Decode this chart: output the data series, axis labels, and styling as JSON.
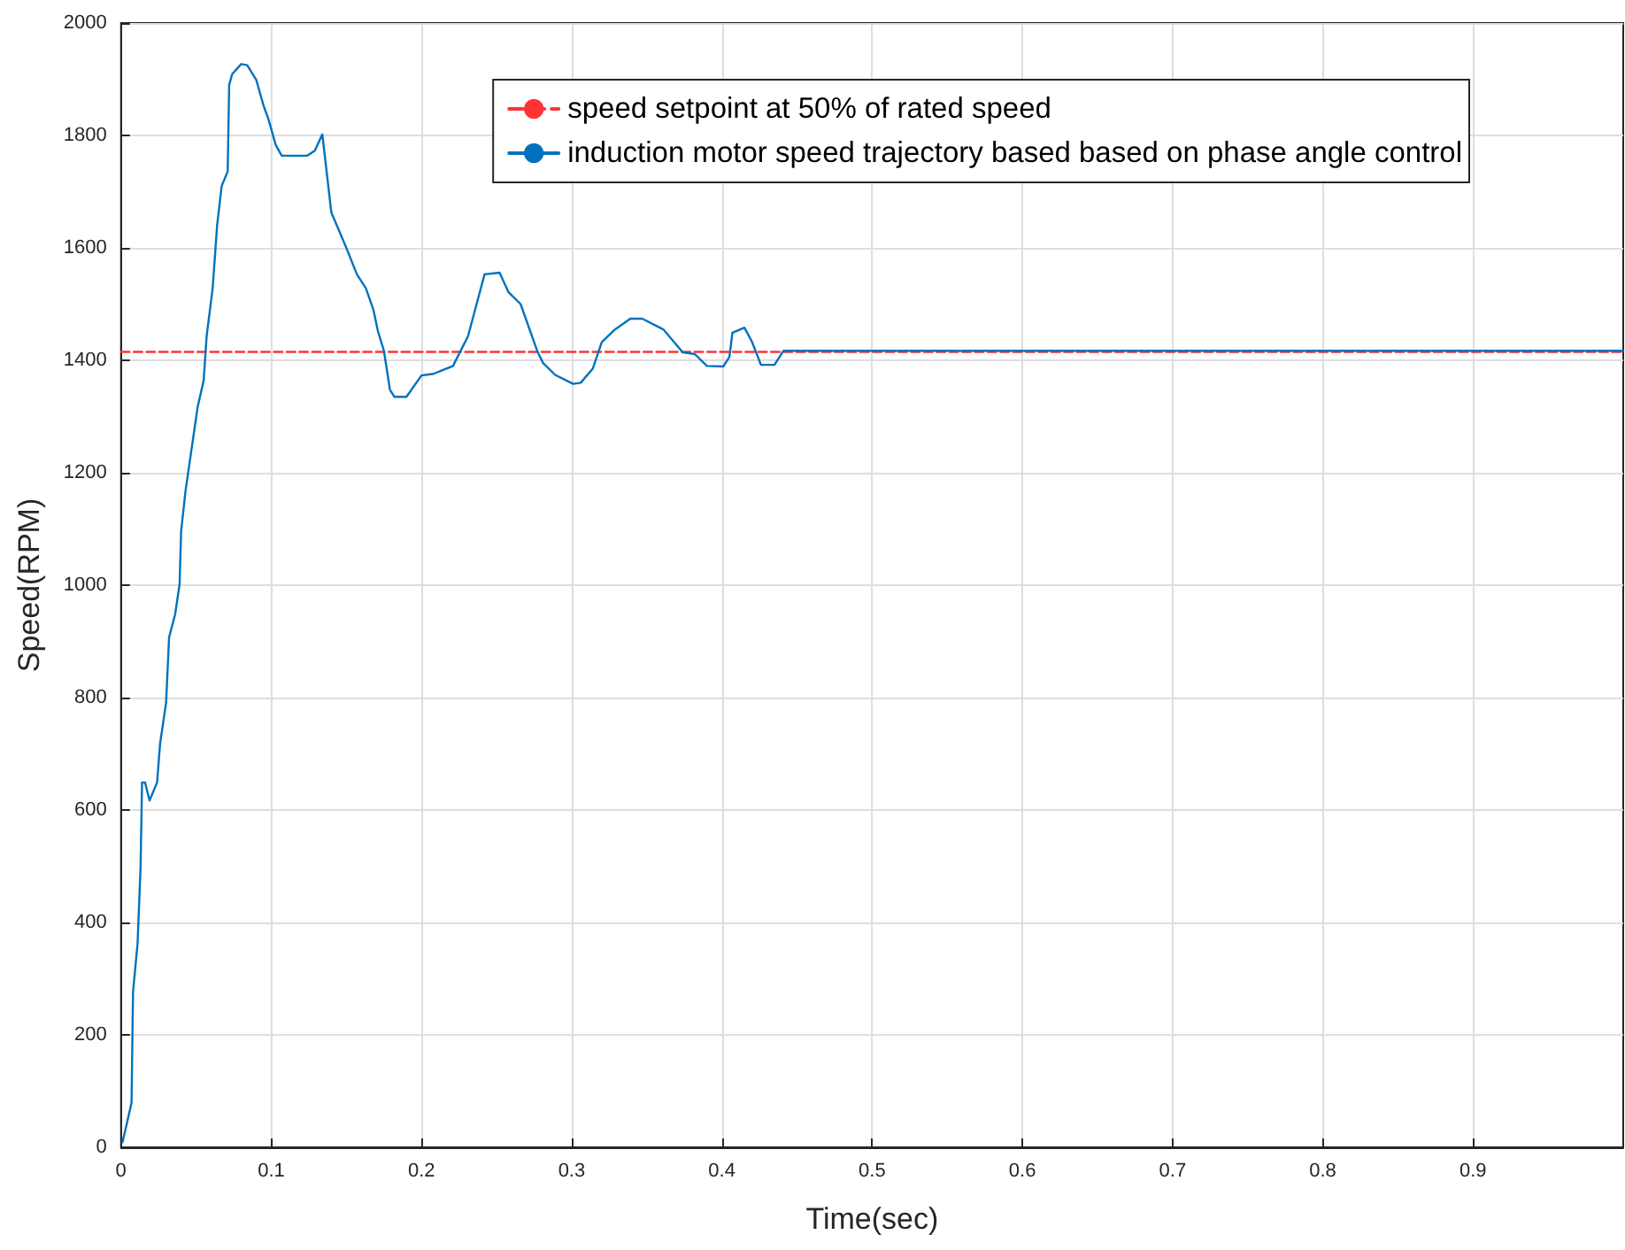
{
  "chart_data": {
    "type": "line",
    "xlabel": "Time(sec)",
    "ylabel": "Speed(RPM)",
    "xlim": [
      0,
      1
    ],
    "ylim": [
      0,
      2000
    ],
    "xticks": [
      0,
      0.1,
      0.2,
      0.3,
      0.4,
      0.5,
      0.6,
      0.7,
      0.8,
      0.9
    ],
    "yticks": [
      0,
      200,
      400,
      600,
      800,
      1000,
      1200,
      1400,
      1600,
      1800,
      2000
    ],
    "grid": true,
    "legend": "top right",
    "marker": "none",
    "series": [
      {
        "name": "speed setpoint at 50% of rated speed",
        "color": "#ff3333",
        "line_style": "dashed",
        "x": [
          0,
          1
        ],
        "values": [
          1415,
          1415
        ]
      },
      {
        "name": "induction motor speed trajectory based based on phase angle control",
        "color": "#0072bd",
        "line_style": "solid",
        "x": [
          0.001,
          0.007,
          0.008,
          0.011,
          0.013,
          0.014,
          0.016,
          0.019,
          0.024,
          0.026,
          0.03,
          0.032,
          0.036,
          0.039,
          0.04,
          0.043,
          0.051,
          0.055,
          0.057,
          0.061,
          0.064,
          0.067,
          0.071,
          0.072,
          0.074,
          0.08,
          0.084,
          0.09,
          0.095,
          0.098,
          0.103,
          0.107,
          0.124,
          0.129,
          0.134,
          0.14,
          0.15,
          0.157,
          0.163,
          0.168,
          0.171,
          0.175,
          0.179,
          0.182,
          0.19,
          0.2,
          0.208,
          0.221,
          0.231,
          0.242,
          0.252,
          0.258,
          0.266,
          0.277,
          0.281,
          0.289,
          0.301,
          0.306,
          0.314,
          0.32,
          0.328,
          0.339,
          0.347,
          0.361,
          0.374,
          0.382,
          0.39,
          0.401,
          0.405,
          0.407,
          0.415,
          0.42,
          0.426,
          0.435,
          0.441,
          1
        ],
        "values": [
          9,
          79,
          277,
          362,
          498,
          649,
          649,
          617,
          649,
          718,
          791,
          907,
          948,
          1002,
          1096,
          1169,
          1317,
          1364,
          1443,
          1528,
          1641,
          1710,
          1736,
          1890,
          1909,
          1927,
          1925,
          1899,
          1852,
          1830,
          1783,
          1764,
          1764,
          1773,
          1802,
          1663,
          1600,
          1553,
          1528,
          1490,
          1452,
          1417,
          1348,
          1335,
          1335,
          1373,
          1376,
          1390,
          1443,
          1553,
          1556,
          1521,
          1500,
          1417,
          1395,
          1374,
          1358,
          1360,
          1385,
          1432,
          1453,
          1474,
          1474,
          1455,
          1414,
          1411,
          1390,
          1389,
          1406,
          1449,
          1458,
          1433,
          1392,
          1392,
          1417,
          1417
        ]
      }
    ]
  }
}
